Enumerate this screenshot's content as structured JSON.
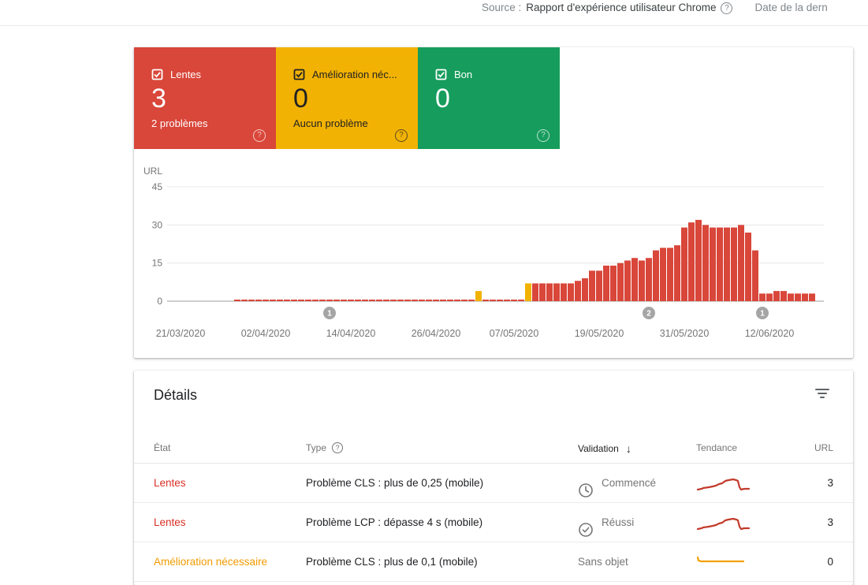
{
  "topbar": {
    "source_label": "Source :",
    "source_value": "Rapport d'expérience utilisateur Chrome",
    "help_icon": "?",
    "date_label": "Date de la dern"
  },
  "cards": [
    {
      "label": "Lentes",
      "count": "3",
      "sublabel": "2 problèmes",
      "color": "#d9463a",
      "text_color": "#ffffff"
    },
    {
      "label": "Amélioration néc...",
      "count": "0",
      "sublabel": "Aucun problème",
      "color": "#f2b203",
      "text_color": "#202124"
    },
    {
      "label": "Bon",
      "count": "0",
      "sublabel": "",
      "color": "#169c5c",
      "text_color": "#ffffff"
    }
  ],
  "chart_data": {
    "type": "bar",
    "ylabel": "URL",
    "ylim": [
      0,
      45
    ],
    "y_ticks": [
      0,
      15,
      30,
      45
    ],
    "x_ticks": [
      {
        "day": 0,
        "label": "21/03/2020"
      },
      {
        "day": 12,
        "label": "02/04/2020"
      },
      {
        "day": 24,
        "label": "14/04/2020"
      },
      {
        "day": 36,
        "label": "26/04/2020"
      },
      {
        "day": 47,
        "label": "07/05/2020"
      },
      {
        "day": 59,
        "label": "19/05/2020"
      },
      {
        "day": 71,
        "label": "31/05/2020"
      },
      {
        "day": 83,
        "label": "12/06/2020"
      }
    ],
    "colors": {
      "red": "#d9463a",
      "yellow": "#f2b203",
      "grid": "#e8e8e8",
      "axis": "#9e9e9e",
      "tick_text": "#757575",
      "marker": "#a5a5a5"
    },
    "flat_line": {
      "start_day": 8,
      "end_day": 48,
      "value": 0.4
    },
    "yellow_bars": [
      {
        "day": 42,
        "value": 4
      },
      {
        "day": 49,
        "value": 7
      }
    ],
    "red_series": {
      "start_day": 50,
      "values": [
        7,
        7,
        7,
        7,
        7,
        7,
        8,
        9,
        12,
        12,
        14,
        14,
        15,
        16,
        17,
        16,
        17,
        20,
        21,
        21,
        22,
        29,
        31,
        32,
        30,
        29,
        29,
        29,
        29,
        30,
        27,
        20,
        3,
        3,
        4,
        4,
        3,
        3,
        3,
        3
      ]
    },
    "markers": [
      {
        "day": 21,
        "label": "1"
      },
      {
        "day": 66,
        "label": "2"
      },
      {
        "day": 82,
        "label": "1"
      }
    ]
  },
  "details": {
    "title": "Détails",
    "columns": {
      "etat": "État",
      "type": "Type",
      "validation": "Validation",
      "tendance": "Tendance",
      "url": "URL"
    },
    "sort_arrow": "↓",
    "type_help_icon": "?",
    "trend_shapes": {
      "rise": [
        [
          2,
          21
        ],
        [
          7,
          20
        ],
        [
          9,
          19
        ],
        [
          16,
          18
        ],
        [
          21,
          17
        ],
        [
          25,
          16
        ],
        [
          29,
          14
        ],
        [
          33,
          13
        ],
        [
          37,
          10
        ],
        [
          41,
          9
        ],
        [
          47,
          8
        ],
        [
          51,
          9
        ],
        [
          53,
          10
        ],
        [
          55,
          18
        ],
        [
          57,
          21
        ],
        [
          61,
          20
        ],
        [
          67,
          20
        ]
      ],
      "flat": [
        [
          2,
          7
        ],
        [
          3,
          11
        ],
        [
          6,
          12
        ],
        [
          60,
          12
        ]
      ]
    },
    "rows": [
      {
        "etat": "Lentes",
        "etat_color": "#d93025",
        "type": "Problème CLS : plus de 0,25 (mobile)",
        "validation": "Commencé",
        "validation_icon": "clock",
        "trend": "rise",
        "trend_color": "#c23b2b",
        "url": "3"
      },
      {
        "etat": "Lentes",
        "etat_color": "#d93025",
        "type": "Problème LCP : dépasse 4 s (mobile)",
        "validation": "Réussi",
        "validation_icon": "check-circle",
        "trend": "rise",
        "trend_color": "#c23b2b",
        "url": "3"
      },
      {
        "etat": "Amélioration nécessaire",
        "etat_color": "#f29b00",
        "type": "Problème CLS : plus de 0,1 (mobile)",
        "validation": "Sans objet",
        "validation_icon": "none",
        "trend": "flat",
        "trend_color": "#f1a004",
        "url": "0"
      }
    ]
  }
}
